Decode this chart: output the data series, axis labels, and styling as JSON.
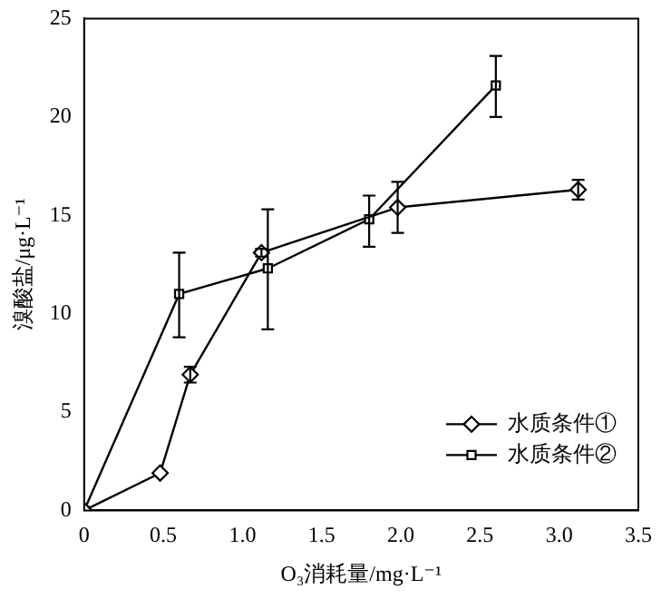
{
  "chart_data": {
    "type": "line",
    "xlabel": "O₃消耗量/mg·L⁻¹",
    "ylabel": "溴酸盐/μg·L⁻¹",
    "xlim": [
      0,
      3.5
    ],
    "xticks": [
      0,
      0.5,
      {
        "value": 1,
        "label": "1.0"
      },
      1.5,
      {
        "value": 2,
        "label": "2.0"
      },
      2.5,
      {
        "value": 3,
        "label": "3.0"
      },
      3.5
    ],
    "ylim": [
      0,
      25
    ],
    "yticks": [
      0,
      5,
      10,
      15,
      20,
      25
    ],
    "grid": false,
    "legend": "bottom right",
    "line_style": "solid",
    "series": [
      {
        "name": "水质条件①",
        "color": "#000000",
        "marker": "diamond",
        "x": [
          0,
          0.48,
          0.67,
          1.12,
          1.98,
          3.12
        ],
        "values": [
          0,
          1.9,
          6.9,
          13.1,
          15.4,
          16.3
        ],
        "errors": [
          null,
          null,
          0.4,
          0.2,
          1.3,
          0.5
        ]
      },
      {
        "name": "水质条件②",
        "color": "#000000",
        "marker": "square",
        "x": [
          0,
          0.6,
          1.16,
          1.8,
          2.6
        ],
        "values": [
          0,
          11.0,
          12.3,
          14.8,
          21.6
        ],
        "errors": [
          null,
          [
            8.8,
            13.1
          ],
          [
            9.2,
            15.3
          ],
          [
            13.4,
            16.0
          ],
          [
            20.0,
            23.1
          ]
        ]
      }
    ]
  }
}
